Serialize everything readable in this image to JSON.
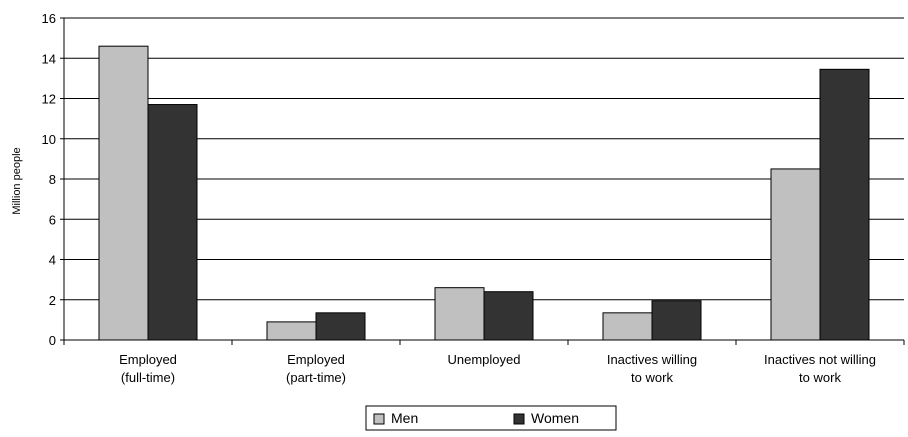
{
  "chart_data": {
    "type": "bar",
    "title": "",
    "xlabel": "",
    "ylabel": "Million people",
    "ylim": [
      0,
      16
    ],
    "yticks": [
      0,
      2,
      4,
      6,
      8,
      10,
      12,
      14,
      16
    ],
    "grid": "horizontal",
    "legend_position": "bottom-center",
    "categories": [
      [
        "Employed",
        "(full-time)"
      ],
      [
        "Employed",
        "(part-time)"
      ],
      [
        "Unemployed"
      ],
      [
        "Inactives willing",
        "to work"
      ],
      [
        "Inactives not willing",
        "to work"
      ]
    ],
    "series": [
      {
        "name": "Men",
        "color": "#c0c0c0",
        "values": [
          14.6,
          0.9,
          2.6,
          1.35,
          8.5
        ]
      },
      {
        "name": "Women",
        "color": "#333333",
        "values": [
          11.7,
          1.35,
          2.4,
          1.95,
          13.45
        ]
      }
    ]
  }
}
